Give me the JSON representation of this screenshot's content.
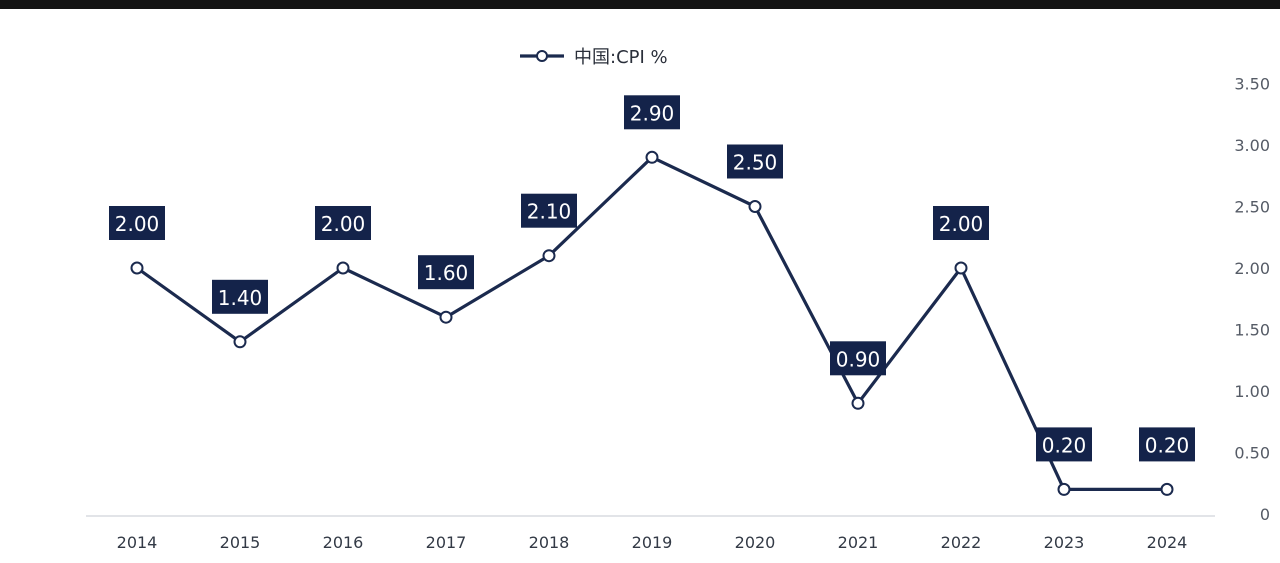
{
  "chart_data": {
    "type": "line",
    "categories": [
      "2014",
      "2015",
      "2016",
      "2017",
      "2018",
      "2019",
      "2020",
      "2021",
      "2022",
      "2023",
      "2024"
    ],
    "series": [
      {
        "name": "中国:CPI %",
        "values": [
          2.0,
          1.4,
          2.0,
          1.6,
          2.1,
          2.9,
          2.5,
          0.9,
          2.0,
          0.2,
          0.2
        ]
      }
    ],
    "data_labels": [
      "2.00",
      "1.40",
      "2.00",
      "1.60",
      "2.10",
      "2.90",
      "2.50",
      "0.90",
      "2.00",
      "0.20",
      "0.20"
    ],
    "y_ticks": [
      "0",
      "0.50",
      "1.00",
      "1.50",
      "2.00",
      "2.50",
      "3.00",
      "3.50"
    ],
    "y_tick_values": [
      0,
      0.5,
      1.0,
      1.5,
      2.0,
      2.5,
      3.0,
      3.5
    ],
    "ylim": [
      0,
      3.5
    ],
    "y_axis_side": "right",
    "legend_position": "top-center",
    "grid": false,
    "colors": {
      "line": "#1b2a4e",
      "label_bg": "#14234a",
      "label_text": "#ffffff"
    }
  }
}
